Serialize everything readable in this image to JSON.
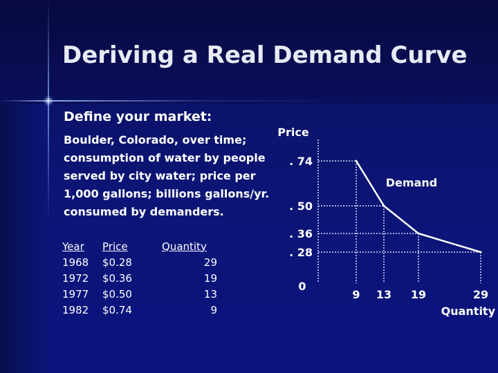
{
  "slide": {
    "title": "Deriving a Real Demand Curve",
    "subheading": "Define your market:",
    "description": "Boulder, Colorado, over time; consumption of water by people served by city water; price per 1,000 gallons; billions gallons/yr. consumed by demanders."
  },
  "table": {
    "headers": [
      "Year",
      "Price",
      "Quantity"
    ],
    "rows": [
      [
        "1968",
        "$0.28",
        "29"
      ],
      [
        "1972",
        "$0.36",
        "19"
      ],
      [
        "1977",
        "$0.50",
        "13"
      ],
      [
        "1982",
        "$0.74",
        "9"
      ]
    ]
  },
  "chart_data": {
    "type": "line",
    "title": "",
    "ylabel": "Price",
    "xlabel": "Quantity",
    "series": [
      {
        "name": "Demand",
        "x": [
          9,
          13,
          19,
          29
        ],
        "y": [
          0.74,
          0.5,
          0.36,
          0.28
        ]
      }
    ],
    "y_ticks": [
      {
        "value": 0,
        "label": "0"
      },
      {
        "value": 0.28,
        "label": ". 28"
      },
      {
        "value": 0.36,
        "label": ". 36"
      },
      {
        "value": 0.5,
        "label": ". 50"
      },
      {
        "value": 0.74,
        "label": ". 74"
      }
    ],
    "x_ticks": [
      {
        "value": 9,
        "label": "9"
      },
      {
        "value": 13,
        "label": "13"
      },
      {
        "value": 19,
        "label": "19"
      },
      {
        "value": 29,
        "label": "29"
      }
    ],
    "grid": false,
    "guide_lines": "dotted"
  },
  "colors": {
    "line": "#ffffff",
    "guides": "#d8dcff",
    "text": "#ffffff"
  }
}
